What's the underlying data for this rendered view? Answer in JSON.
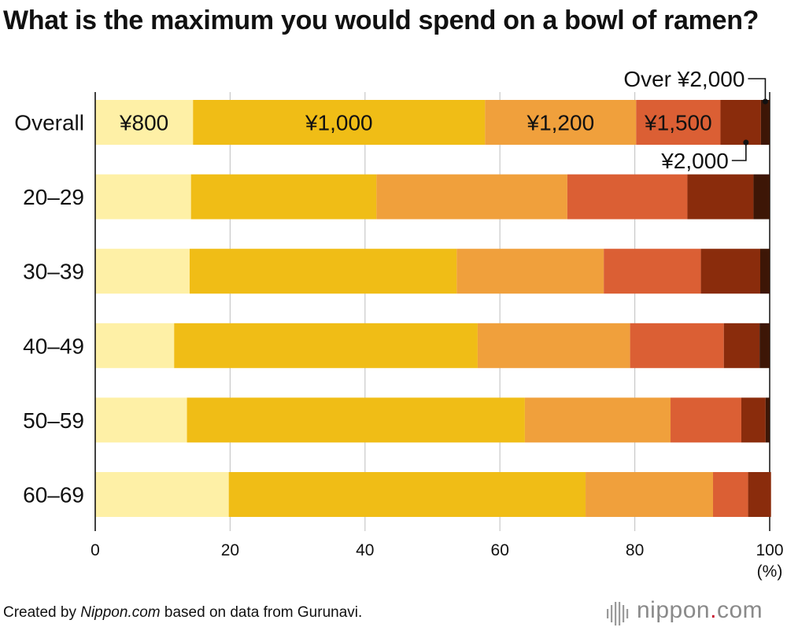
{
  "chart_data": {
    "type": "bar",
    "orientation": "horizontal",
    "stacked": true,
    "title": "What is the maximum you would spend on a bowl of ramen?",
    "unit_label": "(%)",
    "categories": [
      "Overall",
      "20–29",
      "30–39",
      "40–49",
      "50–59",
      "60–69"
    ],
    "series": [
      {
        "name": "¥800",
        "color": "#fef0a6",
        "values": [
          14.5,
          14.2,
          14.0,
          11.7,
          13.6,
          19.8
        ]
      },
      {
        "name": "¥1,000",
        "color": "#f0bd16",
        "values": [
          43.3,
          27.5,
          39.6,
          45.0,
          50.1,
          52.9
        ]
      },
      {
        "name": "¥1,200",
        "color": "#f0a03c",
        "values": [
          22.4,
          28.3,
          21.8,
          22.6,
          21.6,
          18.9
        ]
      },
      {
        "name": "¥1,500",
        "color": "#db5f34",
        "values": [
          12.5,
          17.8,
          14.4,
          13.9,
          10.5,
          5.2
        ]
      },
      {
        "name": "¥2,000",
        "color": "#8a2c0c",
        "values": [
          6.0,
          9.8,
          8.8,
          5.3,
          3.6,
          3.4
        ]
      },
      {
        "name": "Over ¥2,000",
        "color": "#3d1606",
        "values": [
          1.3,
          2.4,
          1.4,
          1.5,
          0.6,
          0.0
        ]
      }
    ],
    "xlim": [
      0,
      100
    ],
    "xticks": [
      "0",
      "20",
      "40",
      "60",
      "80",
      "100"
    ],
    "grid": true,
    "legend": "inline labels on Overall bar"
  },
  "footer": {
    "credit_prefix": "Created by ",
    "credit_source": "Nippon.com",
    "credit_suffix": " based on data from Gurunavi.",
    "logo_main": "nippon",
    "logo_dot": ".",
    "logo_tld": "com"
  }
}
